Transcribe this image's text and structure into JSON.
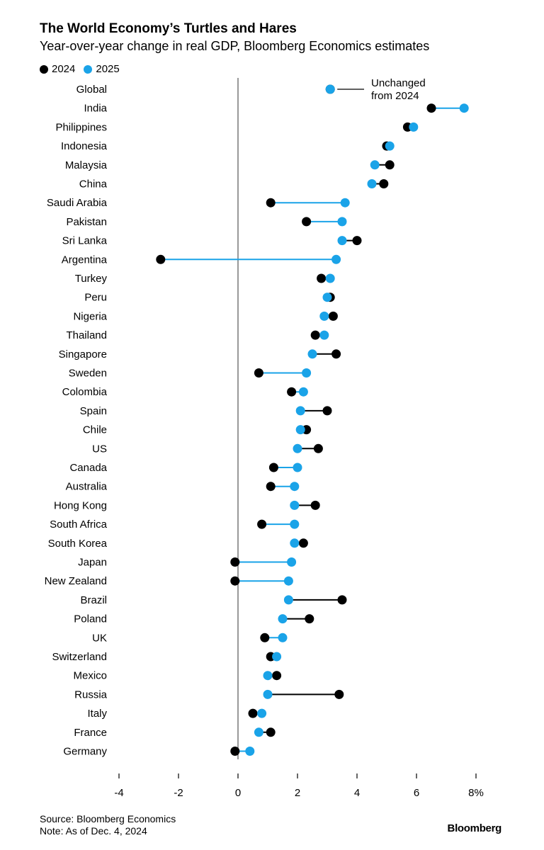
{
  "title": "The World Economy’s Turtles and Hares",
  "subtitle": "Year-over-year change in real GDP, Bloomberg Economics estimates",
  "legend": {
    "label_2024": "2024",
    "label_2025": "2025"
  },
  "colors": {
    "y2024": "#000000",
    "y2025": "#1aa3e8",
    "axis": "#555555"
  },
  "annotation": {
    "line1": "Unchanged",
    "line2": "from 2024"
  },
  "footer": {
    "source": "Source: Bloomberg Economics",
    "note": "Note: As of Dec. 4, 2024"
  },
  "brand": "Bloomberg",
  "chart_data": {
    "type": "dumbbell",
    "xlim": [
      -4,
      8
    ],
    "ticks": [
      {
        "value": -4,
        "label": "-4"
      },
      {
        "value": -2,
        "label": "-2"
      },
      {
        "value": 0,
        "label": "0"
      },
      {
        "value": 2,
        "label": "2"
      },
      {
        "value": 4,
        "label": "4"
      },
      {
        "value": 6,
        "label": "6"
      },
      {
        "value": 8,
        "label": "8%"
      }
    ],
    "series_names": [
      "2024",
      "2025"
    ],
    "rows": [
      {
        "country": "Global",
        "v2024": 3.1,
        "v2025": 3.1
      },
      {
        "country": "India",
        "v2024": 6.5,
        "v2025": 7.6
      },
      {
        "country": "Philippines",
        "v2024": 5.7,
        "v2025": 5.9
      },
      {
        "country": "Indonesia",
        "v2024": 5.0,
        "v2025": 5.1
      },
      {
        "country": "Malaysia",
        "v2024": 5.1,
        "v2025": 4.6
      },
      {
        "country": "China",
        "v2024": 4.9,
        "v2025": 4.5
      },
      {
        "country": "Saudi Arabia",
        "v2024": 1.1,
        "v2025": 3.6
      },
      {
        "country": "Pakistan",
        "v2024": 2.3,
        "v2025": 3.5
      },
      {
        "country": "Sri Lanka",
        "v2024": 4.0,
        "v2025": 3.5
      },
      {
        "country": "Argentina",
        "v2024": -2.6,
        "v2025": 3.3
      },
      {
        "country": "Turkey",
        "v2024": 2.8,
        "v2025": 3.1
      },
      {
        "country": "Peru",
        "v2024": 3.1,
        "v2025": 3.0
      },
      {
        "country": "Nigeria",
        "v2024": 3.2,
        "v2025": 2.9
      },
      {
        "country": "Thailand",
        "v2024": 2.6,
        "v2025": 2.9
      },
      {
        "country": "Singapore",
        "v2024": 3.3,
        "v2025": 2.5
      },
      {
        "country": "Sweden",
        "v2024": 0.7,
        "v2025": 2.3
      },
      {
        "country": "Colombia",
        "v2024": 1.8,
        "v2025": 2.2
      },
      {
        "country": "Spain",
        "v2024": 3.0,
        "v2025": 2.1
      },
      {
        "country": "Chile",
        "v2024": 2.3,
        "v2025": 2.1
      },
      {
        "country": "US",
        "v2024": 2.7,
        "v2025": 2.0
      },
      {
        "country": "Canada",
        "v2024": 1.2,
        "v2025": 2.0
      },
      {
        "country": "Australia",
        "v2024": 1.1,
        "v2025": 1.9
      },
      {
        "country": "Hong Kong",
        "v2024": 2.6,
        "v2025": 1.9
      },
      {
        "country": "South Africa",
        "v2024": 0.8,
        "v2025": 1.9
      },
      {
        "country": "South Korea",
        "v2024": 2.2,
        "v2025": 1.9
      },
      {
        "country": "Japan",
        "v2024": -0.1,
        "v2025": 1.8
      },
      {
        "country": "New Zealand",
        "v2024": -0.1,
        "v2025": 1.7
      },
      {
        "country": "Brazil",
        "v2024": 3.5,
        "v2025": 1.7
      },
      {
        "country": "Poland",
        "v2024": 2.4,
        "v2025": 1.5
      },
      {
        "country": "UK",
        "v2024": 0.9,
        "v2025": 1.5
      },
      {
        "country": "Switzerland",
        "v2024": 1.1,
        "v2025": 1.3
      },
      {
        "country": "Mexico",
        "v2024": 1.3,
        "v2025": 1.0
      },
      {
        "country": "Russia",
        "v2024": 3.4,
        "v2025": 1.0
      },
      {
        "country": "Italy",
        "v2024": 0.5,
        "v2025": 0.8
      },
      {
        "country": "France",
        "v2024": 1.1,
        "v2025": 0.7
      },
      {
        "country": "Germany",
        "v2024": -0.1,
        "v2025": 0.4
      }
    ]
  }
}
